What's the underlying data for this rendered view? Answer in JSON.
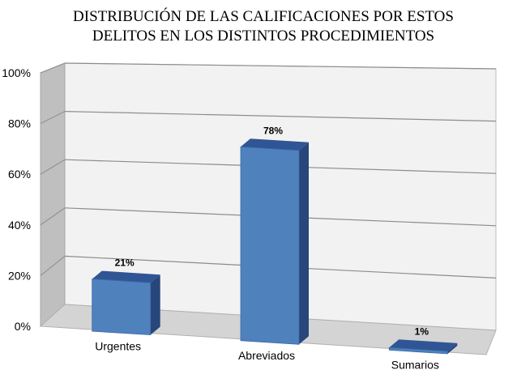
{
  "chart_data": {
    "type": "bar",
    "title": "DISTRIBUCIÓN DE LAS CALIFICACIONES POR ESTOS DELITOS EN  LOS DISTINTOS PROCEDIMIENTOS",
    "title_lines": [
      "DISTRIBUCIÓN DE LAS CALIFICACIONES POR ESTOS",
      "DELITOS EN  LOS DISTINTOS PROCEDIMIENTOS"
    ],
    "categories": [
      "Urgentes",
      "Abreviados",
      "Sumarios"
    ],
    "values": [
      21,
      78,
      1
    ],
    "data_labels": [
      "21%",
      "78%",
      "1%"
    ],
    "y_ticks": [
      "0%",
      "20%",
      "40%",
      "60%",
      "80%",
      "100%"
    ],
    "ylim": [
      0,
      100
    ],
    "xlabel": "",
    "ylabel": "",
    "grid": true,
    "legend": "none",
    "style": "3d-column",
    "colors": {
      "bar_front": "#4f81bd",
      "bar_top": "#2f5594",
      "bar_side": "#27467a",
      "wall": "#f2f2f2",
      "side_wall": "#bfbfbf",
      "floor": "#d4d4d4",
      "gridline": "#8c8c8c"
    }
  }
}
